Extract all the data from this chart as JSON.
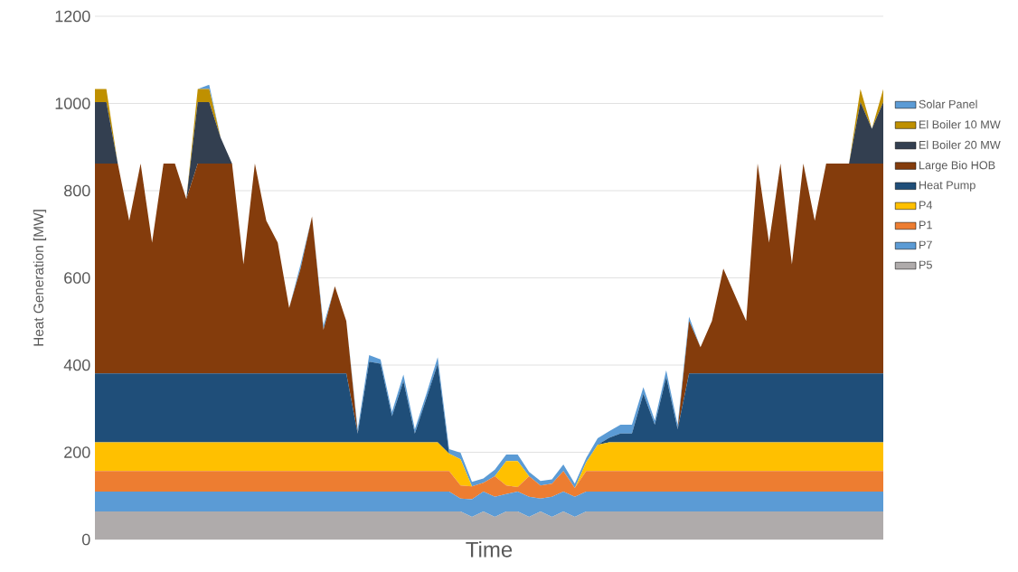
{
  "chart_data": {
    "type": "area",
    "stacked": true,
    "xlabel": "Time",
    "ylabel": "Heat Generation [MW]",
    "ylim": [
      0,
      1200
    ],
    "yticks": [
      0,
      200,
      400,
      600,
      800,
      1000,
      1200
    ],
    "grid": "y",
    "legend": "right",
    "categories": [
      null,
      null,
      null,
      null,
      null,
      null,
      null,
      null,
      null,
      null,
      null,
      null,
      null,
      null,
      null,
      null,
      null,
      null,
      null,
      null,
      null,
      null,
      null,
      null,
      null,
      null,
      null,
      null,
      null,
      null,
      null,
      null,
      null,
      null,
      null,
      null,
      null,
      null,
      null,
      null,
      null,
      null,
      null,
      null,
      null,
      null,
      null,
      null,
      null,
      null,
      null,
      null,
      null,
      null,
      null,
      null,
      null,
      null,
      null,
      null,
      null,
      null,
      null,
      null,
      null,
      null,
      null,
      null,
      null,
      null
    ],
    "series": [
      {
        "name": "P5",
        "color": "#afabab",
        "values": [
          64,
          64,
          64,
          64,
          64,
          64,
          64,
          64,
          64,
          64,
          64,
          64,
          64,
          64,
          64,
          64,
          64,
          64,
          64,
          64,
          64,
          64,
          64,
          64,
          64,
          64,
          64,
          64,
          64,
          64,
          64,
          64,
          64,
          52,
          64,
          52,
          64,
          64,
          52,
          64,
          52,
          64,
          52,
          64,
          64,
          64,
          64,
          64,
          64,
          64,
          64,
          64,
          64,
          64,
          64,
          64,
          64,
          64,
          64,
          64,
          64,
          64,
          64,
          64,
          64,
          64,
          64,
          64,
          64,
          64
        ]
      },
      {
        "name": "P7",
        "color": "#5b9bd5",
        "values": [
          46,
          46,
          46,
          46,
          46,
          46,
          46,
          46,
          46,
          46,
          46,
          46,
          46,
          46,
          46,
          46,
          46,
          46,
          46,
          46,
          46,
          46,
          46,
          46,
          46,
          46,
          46,
          46,
          46,
          46,
          46,
          46,
          30,
          40,
          46,
          46,
          40,
          46,
          46,
          30,
          46,
          46,
          46,
          46,
          46,
          46,
          46,
          46,
          46,
          46,
          46,
          46,
          46,
          46,
          46,
          46,
          46,
          46,
          46,
          46,
          46,
          46,
          46,
          46,
          46,
          46,
          46,
          46,
          46,
          46
        ]
      },
      {
        "name": "P1",
        "color": "#ed7d31",
        "values": [
          47,
          47,
          47,
          47,
          47,
          47,
          47,
          47,
          47,
          47,
          47,
          47,
          47,
          47,
          47,
          47,
          47,
          47,
          47,
          47,
          47,
          47,
          47,
          47,
          47,
          47,
          47,
          47,
          47,
          47,
          47,
          47,
          30,
          30,
          20,
          47,
          20,
          10,
          47,
          30,
          30,
          47,
          20,
          47,
          47,
          47,
          47,
          47,
          47,
          47,
          47,
          47,
          47,
          47,
          47,
          47,
          47,
          47,
          47,
          47,
          47,
          47,
          47,
          47,
          47,
          47,
          47,
          47,
          47,
          47
        ]
      },
      {
        "name": "P4",
        "color": "#ffc000",
        "values": [
          66,
          66,
          66,
          66,
          66,
          66,
          66,
          66,
          66,
          66,
          66,
          66,
          66,
          66,
          66,
          66,
          66,
          66,
          66,
          66,
          66,
          66,
          66,
          66,
          66,
          66,
          66,
          66,
          66,
          66,
          66,
          40,
          60,
          0,
          0,
          0,
          56,
          60,
          0,
          0,
          0,
          0,
          0,
          20,
          60,
          66,
          66,
          66,
          66,
          66,
          66,
          66,
          66,
          66,
          66,
          66,
          66,
          66,
          66,
          66,
          66,
          66,
          66,
          66,
          66,
          66,
          66,
          66,
          66,
          66
        ]
      },
      {
        "name": "Heat Pump",
        "color": "#1f4e79",
        "values": [
          158,
          158,
          158,
          158,
          158,
          158,
          158,
          158,
          158,
          158,
          158,
          158,
          158,
          158,
          158,
          158,
          158,
          158,
          158,
          158,
          158,
          158,
          158,
          20,
          185,
          180,
          60,
          140,
          20,
          100,
          180,
          0,
          0,
          0,
          0,
          0,
          0,
          0,
          0,
          0,
          0,
          0,
          0,
          0,
          0,
          10,
          20,
          20,
          111,
          40,
          150,
          30,
          158,
          158,
          158,
          158,
          158,
          158,
          158,
          158,
          158,
          158,
          158,
          158,
          158,
          158,
          158,
          158,
          158,
          158
        ]
      },
      {
        "name": "Large Bio HOB",
        "color": "#843c0c",
        "values": [
          481,
          481,
          481,
          350,
          481,
          300,
          481,
          481,
          400,
          481,
          481,
          481,
          481,
          250,
          481,
          350,
          300,
          150,
          240,
          360,
          100,
          200,
          120,
          0,
          0,
          0,
          0,
          0,
          0,
          0,
          0,
          0,
          0,
          0,
          0,
          0,
          0,
          0,
          0,
          0,
          0,
          0,
          0,
          0,
          0,
          0,
          0,
          0,
          0,
          0,
          0,
          0,
          120,
          60,
          120,
          240,
          180,
          120,
          481,
          300,
          481,
          250,
          481,
          350,
          481,
          481,
          481,
          481,
          481,
          481
        ]
      },
      {
        "name": "El Boiler 20 MW",
        "color": "#333f50",
        "values": [
          141,
          141,
          0,
          0,
          0,
          0,
          0,
          0,
          0,
          141,
          141,
          60,
          0,
          0,
          0,
          0,
          0,
          0,
          0,
          0,
          0,
          0,
          0,
          0,
          0,
          0,
          0,
          0,
          0,
          0,
          0,
          0,
          0,
          0,
          0,
          0,
          0,
          0,
          0,
          0,
          0,
          0,
          0,
          0,
          0,
          0,
          0,
          0,
          0,
          0,
          0,
          0,
          0,
          0,
          0,
          0,
          0,
          0,
          0,
          0,
          0,
          0,
          0,
          0,
          0,
          0,
          0,
          141,
          80,
          141
        ]
      },
      {
        "name": "El Boiler 10 MW",
        "color": "#bf9000",
        "values": [
          30,
          30,
          0,
          0,
          0,
          0,
          0,
          0,
          0,
          30,
          30,
          0,
          0,
          0,
          0,
          0,
          0,
          0,
          0,
          0,
          0,
          0,
          0,
          0,
          0,
          0,
          0,
          0,
          0,
          0,
          0,
          0,
          0,
          0,
          0,
          0,
          0,
          0,
          0,
          0,
          0,
          0,
          0,
          0,
          0,
          0,
          0,
          0,
          0,
          0,
          0,
          0,
          0,
          0,
          0,
          0,
          0,
          0,
          0,
          0,
          0,
          0,
          0,
          0,
          0,
          0,
          0,
          30,
          0,
          30
        ]
      },
      {
        "name": "Solar Panel",
        "color": "#5b9bd5",
        "values": [
          0,
          0,
          0,
          0,
          0,
          0,
          0,
          0,
          0,
          0,
          10,
          0,
          0,
          0,
          0,
          0,
          0,
          0,
          10,
          0,
          10,
          0,
          0,
          10,
          15,
          10,
          10,
          15,
          10,
          10,
          15,
          10,
          15,
          10,
          10,
          15,
          15,
          15,
          10,
          10,
          10,
          15,
          10,
          10,
          15,
          15,
          20,
          20,
          15,
          10,
          15,
          10,
          10,
          0,
          0,
          0,
          0,
          0,
          0,
          0,
          0,
          0,
          0,
          0,
          0,
          0,
          0,
          0,
          0,
          0
        ]
      }
    ]
  }
}
